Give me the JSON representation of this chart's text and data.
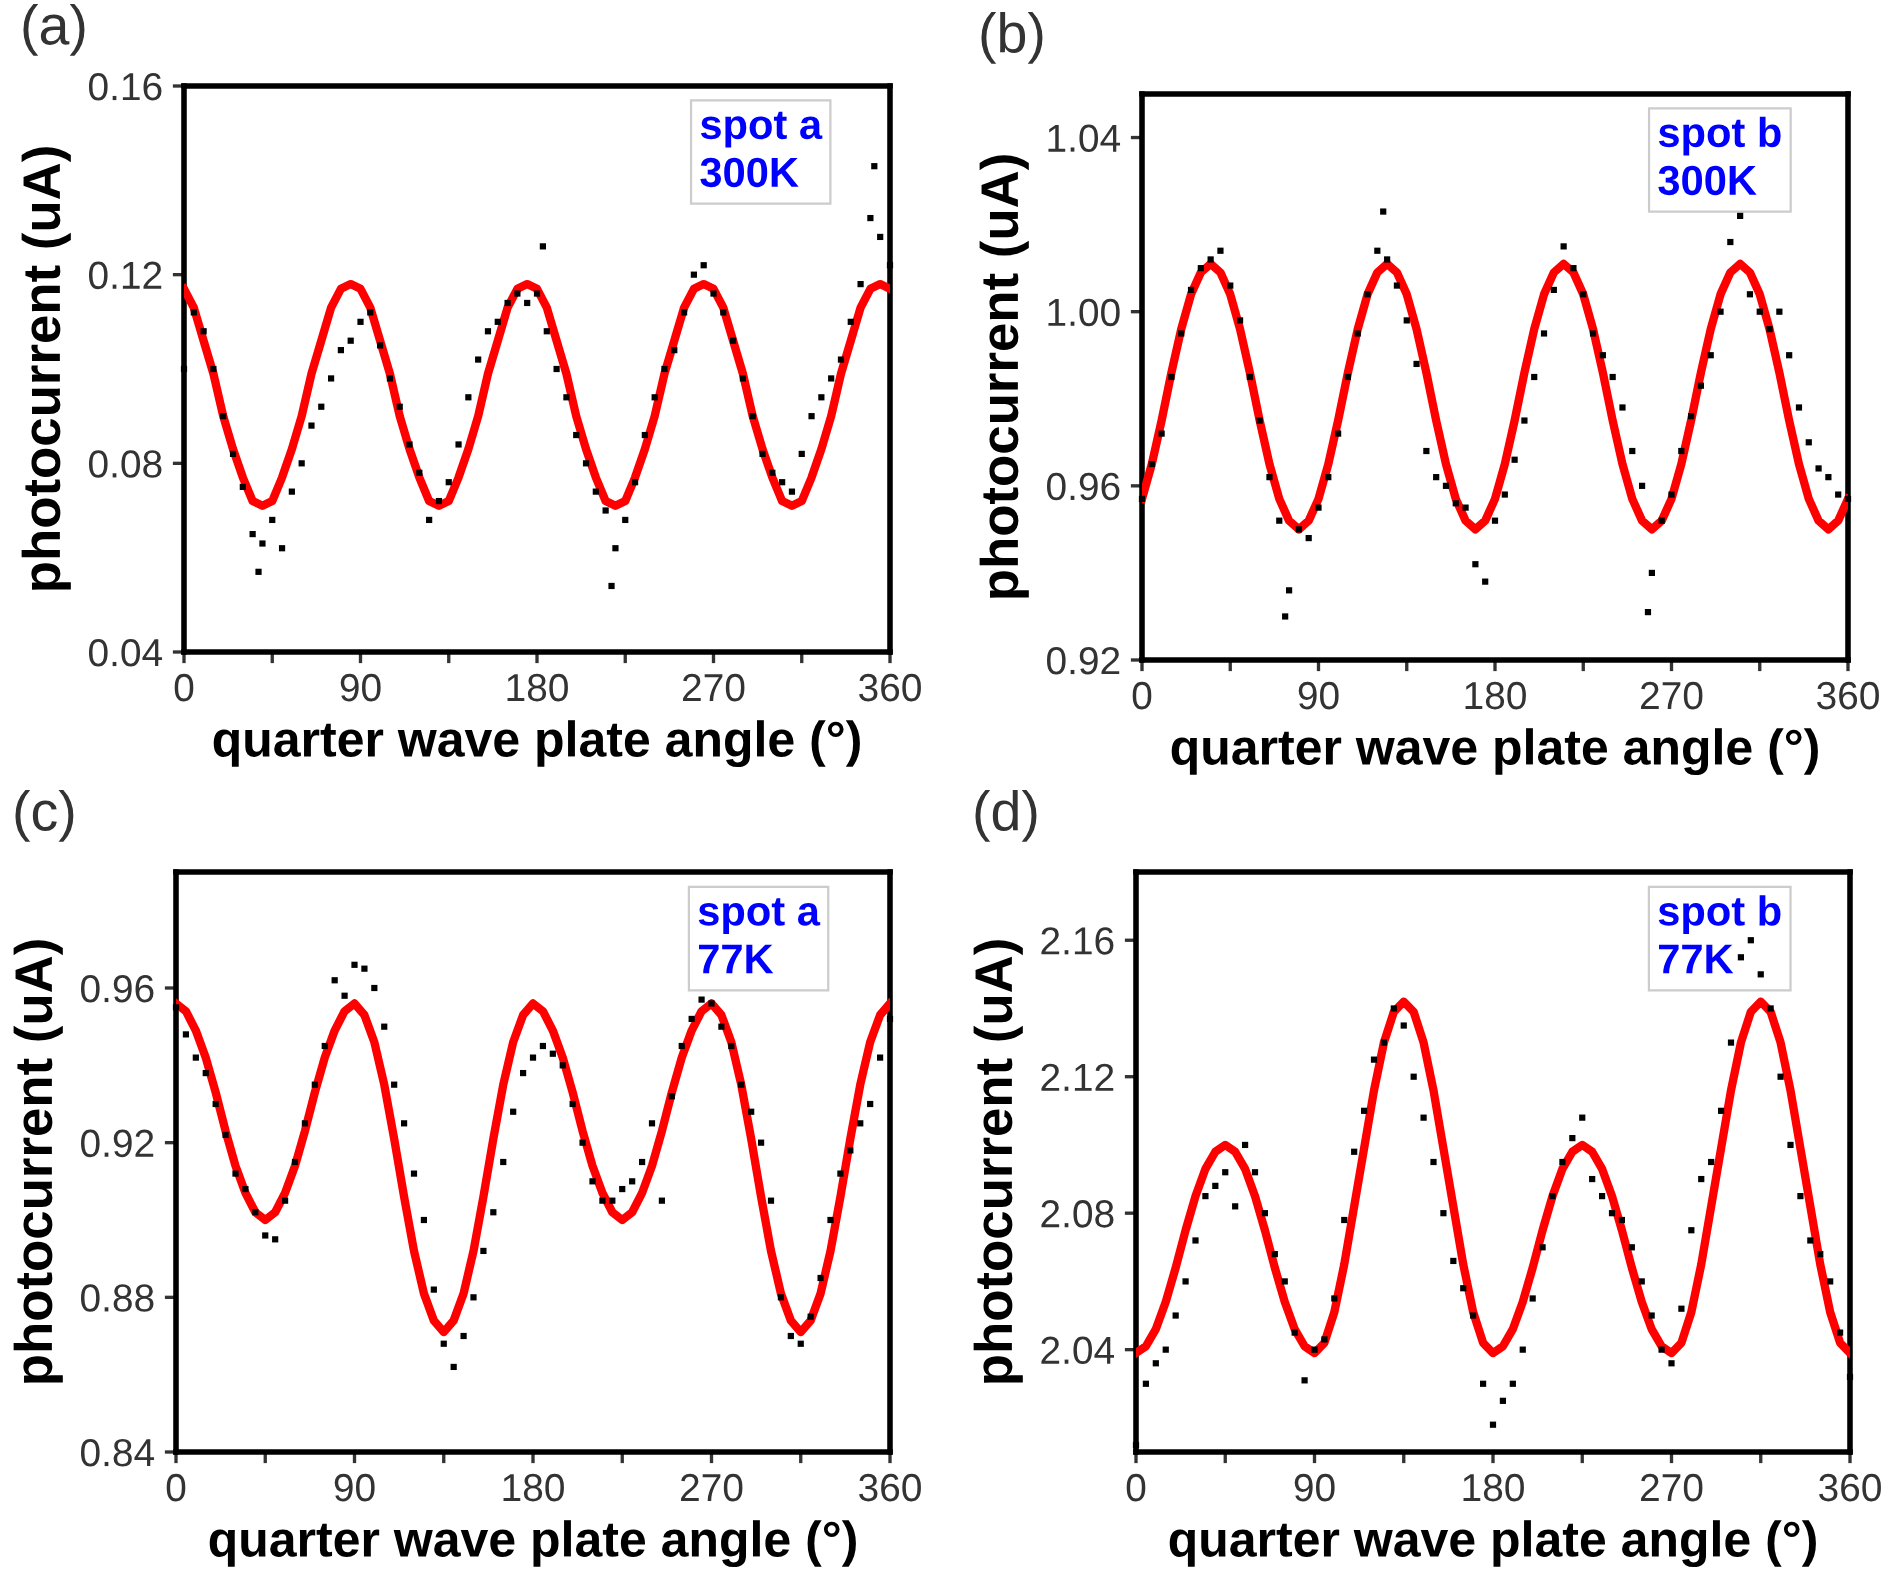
{
  "chart_data": [
    {
      "type": "scatter",
      "title": "(a)",
      "xlabel": "quarter wave plate angle (°)",
      "ylabel": "photocurrent (uA)",
      "annotations": [
        "spot a\n300K"
      ],
      "xlim": [
        0,
        360
      ],
      "ylim": [
        0.04,
        0.16
      ],
      "xticks": [
        0,
        {
          "value": 45,
          "label": null
        },
        90,
        {
          "value": 135,
          "label": null
        },
        180,
        {
          "value": 225,
          "label": null
        },
        270,
        {
          "value": 315,
          "label": null
        },
        360
      ],
      "yticks": [
        0.04,
        0.08,
        0.12,
        0.16
      ],
      "series": [
        {
          "color": "#000000",
          "x": [
            0,
            5,
            10,
            15,
            20,
            25,
            30,
            35,
            38,
            40,
            45,
            50,
            55,
            60,
            65,
            70,
            75,
            80,
            85,
            90,
            95,
            100,
            105,
            110,
            115,
            120,
            125,
            130,
            135,
            140,
            145,
            150,
            155,
            160,
            165,
            170,
            175,
            180,
            183,
            185,
            190,
            195,
            200,
            205,
            210,
            215,
            218,
            220,
            225,
            230,
            235,
            240,
            245,
            250,
            255,
            260,
            265,
            270,
            275,
            280,
            285,
            290,
            295,
            300,
            305,
            310,
            315,
            320,
            325,
            330,
            335,
            340,
            345,
            350,
            352,
            355,
            360
          ],
          "values": [
            0.1,
            0.112,
            0.108,
            0.1,
            0.09,
            0.082,
            0.075,
            0.065,
            0.057,
            0.063,
            0.068,
            0.062,
            0.074,
            0.08,
            0.088,
            0.092,
            0.098,
            0.104,
            0.106,
            0.11,
            0.112,
            0.105,
            0.098,
            0.092,
            0.084,
            0.078,
            0.068,
            0.072,
            0.076,
            0.084,
            0.094,
            0.102,
            0.108,
            0.11,
            0.114,
            0.116,
            0.114,
            0.116,
            0.126,
            0.108,
            0.1,
            0.094,
            0.086,
            0.08,
            0.074,
            0.07,
            0.054,
            0.062,
            0.068,
            0.076,
            0.086,
            0.094,
            0.1,
            0.104,
            0.112,
            0.12,
            0.122,
            0.116,
            0.112,
            0.106,
            0.098,
            0.09,
            0.082,
            0.078,
            0.076,
            0.074,
            0.082,
            0.09,
            0.094,
            0.098,
            0.102,
            0.11,
            0.118,
            0.132,
            0.143,
            0.128,
            0.122
          ]
        },
        {
          "type": "line",
          "color": "#ff0000",
          "x": [
            0,
            5,
            10,
            15,
            20,
            25,
            30,
            35,
            40,
            45,
            50,
            55,
            60,
            65,
            70,
            75,
            80,
            85,
            90,
            95,
            100,
            105,
            110,
            115,
            120,
            125,
            130,
            135,
            140,
            145,
            150,
            155,
            160,
            165,
            170,
            175,
            180,
            185,
            190,
            195,
            200,
            205,
            210,
            215,
            220,
            225,
            230,
            235,
            240,
            245,
            250,
            255,
            260,
            265,
            270,
            275,
            280,
            285,
            290,
            295,
            300,
            305,
            310,
            315,
            320,
            325,
            330,
            335,
            340,
            345,
            350,
            355,
            360
          ],
          "values": [
            0.117,
            0.113,
            0.106,
            0.099,
            0.09,
            0.083,
            0.077,
            0.072,
            0.071,
            0.072,
            0.077,
            0.083,
            0.09,
            0.099,
            0.106,
            0.113,
            0.117,
            0.118,
            0.117,
            0.113,
            0.106,
            0.099,
            0.09,
            0.083,
            0.077,
            0.072,
            0.071,
            0.072,
            0.077,
            0.083,
            0.09,
            0.099,
            0.106,
            0.113,
            0.117,
            0.118,
            0.117,
            0.113,
            0.106,
            0.099,
            0.09,
            0.083,
            0.077,
            0.072,
            0.071,
            0.072,
            0.077,
            0.083,
            0.09,
            0.099,
            0.106,
            0.113,
            0.117,
            0.118,
            0.117,
            0.113,
            0.106,
            0.099,
            0.09,
            0.083,
            0.077,
            0.072,
            0.071,
            0.072,
            0.077,
            0.083,
            0.09,
            0.099,
            0.106,
            0.113,
            0.117,
            0.118,
            0.117
          ]
        }
      ]
    },
    {
      "type": "scatter",
      "title": "(b)",
      "xlabel": "quarter wave plate angle (°)",
      "ylabel": "photocurrent (uA)",
      "annotations": [
        "spot b\n300K"
      ],
      "xlim": [
        0,
        360
      ],
      "ylim": [
        0.92,
        1.05
      ],
      "xticks": [
        0,
        {
          "value": 45,
          "label": null
        },
        90,
        {
          "value": 135,
          "label": null
        },
        180,
        {
          "value": 225,
          "label": null
        },
        270,
        {
          "value": 315,
          "label": null
        },
        360
      ],
      "yticks": [
        0.92,
        0.96,
        {
          "value": 1.0,
          "label": "1.00"
        },
        1.04
      ],
      "series": [
        {
          "color": "#000000",
          "x": [
            0,
            5,
            10,
            15,
            20,
            25,
            30,
            35,
            40,
            45,
            50,
            55,
            60,
            65,
            70,
            73,
            75,
            80,
            85,
            90,
            95,
            100,
            105,
            110,
            115,
            120,
            123,
            125,
            130,
            135,
            140,
            145,
            150,
            155,
            160,
            165,
            170,
            175,
            180,
            185,
            190,
            195,
            200,
            205,
            210,
            215,
            220,
            225,
            230,
            235,
            240,
            245,
            250,
            255,
            258,
            260,
            265,
            270,
            275,
            280,
            285,
            290,
            295,
            300,
            305,
            310,
            315,
            320,
            325,
            330,
            335,
            340,
            345,
            350,
            355,
            360
          ],
          "values": [
            0.957,
            0.965,
            0.972,
            0.985,
            0.995,
            1.005,
            1.01,
            1.012,
            1.014,
            1.006,
            0.998,
            0.985,
            0.975,
            0.962,
            0.952,
            0.93,
            0.936,
            0.95,
            0.948,
            0.955,
            0.962,
            0.972,
            0.985,
            0.995,
            1.004,
            1.014,
            1.023,
            1.012,
            1.006,
            0.998,
            0.988,
            0.968,
            0.962,
            0.96,
            0.956,
            0.955,
            0.942,
            0.938,
            0.952,
            0.958,
            0.966,
            0.975,
            0.985,
            0.995,
            1.005,
            1.015,
            1.01,
            1.004,
            0.995,
            0.99,
            0.985,
            0.978,
            0.968,
            0.96,
            0.931,
            0.94,
            0.952,
            0.958,
            0.968,
            0.976,
            0.983,
            0.99,
            1.0,
            1.016,
            1.022,
            1.004,
            1.0,
            0.996,
            1.0,
            0.99,
            0.978,
            0.97,
            0.964,
            0.962,
            0.958,
            0.957
          ]
        },
        {
          "type": "line",
          "color": "#ff0000",
          "x": [
            0,
            5,
            10,
            15,
            20,
            25,
            30,
            35,
            40,
            45,
            50,
            55,
            60,
            65,
            70,
            75,
            80,
            85,
            90,
            95,
            100,
            105,
            110,
            115,
            120,
            125,
            130,
            135,
            140,
            145,
            150,
            155,
            160,
            165,
            170,
            175,
            180,
            185,
            190,
            195,
            200,
            205,
            210,
            215,
            220,
            225,
            230,
            235,
            240,
            245,
            250,
            255,
            260,
            265,
            270,
            275,
            280,
            285,
            290,
            295,
            300,
            305,
            310,
            315,
            320,
            325,
            330,
            335,
            340,
            345,
            350,
            355,
            360
          ],
          "values": [
            0.957,
            0.965,
            0.975,
            0.986,
            0.996,
            1.004,
            1.009,
            1.011,
            1.009,
            1.004,
            0.996,
            0.986,
            0.975,
            0.965,
            0.957,
            0.952,
            0.95,
            0.952,
            0.957,
            0.965,
            0.975,
            0.986,
            0.996,
            1.004,
            1.009,
            1.011,
            1.009,
            1.004,
            0.996,
            0.986,
            0.975,
            0.965,
            0.957,
            0.952,
            0.95,
            0.952,
            0.957,
            0.965,
            0.975,
            0.986,
            0.996,
            1.004,
            1.009,
            1.011,
            1.009,
            1.004,
            0.996,
            0.986,
            0.975,
            0.965,
            0.957,
            0.952,
            0.95,
            0.952,
            0.957,
            0.965,
            0.975,
            0.986,
            0.996,
            1.004,
            1.009,
            1.011,
            1.009,
            1.004,
            0.996,
            0.986,
            0.975,
            0.965,
            0.957,
            0.952,
            0.95,
            0.952,
            0.957
          ]
        }
      ]
    },
    {
      "type": "scatter",
      "title": "(c)",
      "xlabel": "quarter wave plate angle (°)",
      "ylabel": "photocurrent (uA)",
      "annotations": [
        "spot a\n77K"
      ],
      "xlim": [
        0,
        360
      ],
      "ylim": [
        0.84,
        0.99
      ],
      "xticks": [
        0,
        {
          "value": 45,
          "label": null
        },
        90,
        {
          "value": 135,
          "label": null
        },
        180,
        {
          "value": 225,
          "label": null
        },
        270,
        {
          "value": 315,
          "label": null
        },
        360
      ],
      "yticks": [
        0.84,
        0.88,
        0.92,
        0.96
      ],
      "series": [
        {
          "color": "#000000",
          "x": [
            0,
            5,
            10,
            15,
            20,
            25,
            30,
            35,
            40,
            45,
            50,
            55,
            60,
            65,
            70,
            75,
            80,
            85,
            90,
            95,
            100,
            105,
            110,
            115,
            120,
            125,
            130,
            135,
            140,
            145,
            150,
            155,
            160,
            165,
            170,
            175,
            180,
            185,
            190,
            195,
            200,
            205,
            210,
            215,
            220,
            225,
            230,
            235,
            240,
            245,
            250,
            255,
            260,
            265,
            270,
            275,
            280,
            285,
            290,
            295,
            300,
            305,
            310,
            315,
            320,
            325,
            330,
            335,
            340,
            345,
            350,
            355,
            360
          ],
          "values": [
            0.955,
            0.948,
            0.942,
            0.938,
            0.93,
            0.922,
            0.912,
            0.908,
            0.902,
            0.896,
            0.895,
            0.905,
            0.915,
            0.925,
            0.935,
            0.945,
            0.962,
            0.958,
            0.966,
            0.965,
            0.96,
            0.95,
            0.935,
            0.925,
            0.912,
            0.9,
            0.882,
            0.868,
            0.862,
            0.87,
            0.88,
            0.892,
            0.902,
            0.915,
            0.928,
            0.938,
            0.942,
            0.945,
            0.943,
            0.94,
            0.93,
            0.92,
            0.91,
            0.905,
            0.905,
            0.908,
            0.91,
            0.915,
            0.925,
            0.905,
            0.932,
            0.945,
            0.952,
            0.957,
            0.956,
            0.95,
            0.945,
            0.935,
            0.928,
            0.92,
            0.905,
            0.88,
            0.87,
            0.868,
            0.875,
            0.885,
            0.9,
            0.912,
            0.918,
            0.925,
            0.93,
            0.942,
            0.952
          ]
        },
        {
          "type": "line",
          "color": "#ff0000",
          "x": [
            0,
            5,
            10,
            15,
            20,
            25,
            30,
            35,
            40,
            45,
            50,
            55,
            60,
            65,
            70,
            75,
            80,
            85,
            90,
            95,
            100,
            105,
            110,
            115,
            120,
            125,
            130,
            135,
            140,
            145,
            150,
            155,
            160,
            165,
            170,
            175,
            180,
            185,
            190,
            195,
            200,
            205,
            210,
            215,
            220,
            225,
            230,
            235,
            240,
            245,
            250,
            255,
            260,
            265,
            270,
            275,
            280,
            285,
            290,
            295,
            300,
            305,
            310,
            315,
            320,
            325,
            330,
            335,
            340,
            345,
            350,
            355,
            360
          ],
          "values": [
            0.956,
            0.954,
            0.949,
            0.942,
            0.933,
            0.923,
            0.914,
            0.907,
            0.902,
            0.9,
            0.902,
            0.907,
            0.914,
            0.923,
            0.933,
            0.942,
            0.949,
            0.954,
            0.956,
            0.953,
            0.946,
            0.935,
            0.921,
            0.906,
            0.892,
            0.881,
            0.874,
            0.871,
            0.874,
            0.881,
            0.892,
            0.906,
            0.921,
            0.935,
            0.946,
            0.953,
            0.956,
            0.954,
            0.949,
            0.942,
            0.933,
            0.923,
            0.914,
            0.907,
            0.902,
            0.9,
            0.902,
            0.907,
            0.914,
            0.923,
            0.933,
            0.942,
            0.949,
            0.954,
            0.956,
            0.953,
            0.946,
            0.935,
            0.921,
            0.906,
            0.892,
            0.881,
            0.874,
            0.871,
            0.874,
            0.881,
            0.892,
            0.906,
            0.921,
            0.935,
            0.946,
            0.953,
            0.956
          ]
        }
      ]
    },
    {
      "type": "scatter",
      "title": "(d)",
      "xlabel": "quarter wave plate angle (°)",
      "ylabel": "photocurrent (uA)",
      "annotations": [
        "spot b\n77K"
      ],
      "xlim": [
        0,
        360
      ],
      "ylim": [
        2.01,
        2.18
      ],
      "xticks": [
        0,
        {
          "value": 45,
          "label": null
        },
        90,
        {
          "value": 135,
          "label": null
        },
        180,
        {
          "value": 225,
          "label": null
        },
        270,
        {
          "value": 315,
          "label": null
        },
        360
      ],
      "yticks": [
        2.04,
        2.08,
        2.12,
        2.16
      ],
      "series": [
        {
          "color": "#000000",
          "x": [
            0,
            5,
            10,
            15,
            20,
            25,
            30,
            35,
            40,
            45,
            50,
            55,
            60,
            65,
            70,
            75,
            80,
            85,
            90,
            95,
            100,
            105,
            110,
            115,
            120,
            125,
            130,
            135,
            140,
            145,
            150,
            155,
            160,
            165,
            170,
            175,
            180,
            185,
            190,
            195,
            200,
            205,
            210,
            215,
            220,
            225,
            230,
            235,
            240,
            245,
            250,
            255,
            260,
            265,
            270,
            275,
            280,
            285,
            290,
            295,
            300,
            305,
            310,
            315,
            320,
            325,
            330,
            335,
            340,
            345,
            350,
            355,
            360
          ],
          "values": [
            2.012,
            2.03,
            2.036,
            2.04,
            2.05,
            2.06,
            2.072,
            2.085,
            2.088,
            2.092,
            2.082,
            2.1,
            2.092,
            2.08,
            2.068,
            2.06,
            2.045,
            2.031,
            2.04,
            2.043,
            2.055,
            2.078,
            2.098,
            2.11,
            2.125,
            2.13,
            2.14,
            2.135,
            2.12,
            2.108,
            2.095,
            2.08,
            2.066,
            2.058,
            2.05,
            2.03,
            2.018,
            2.025,
            2.03,
            2.04,
            2.055,
            2.07,
            2.085,
            2.095,
            2.102,
            2.108,
            2.09,
            2.085,
            2.08,
            2.078,
            2.07,
            2.06,
            2.05,
            2.04,
            2.036,
            2.052,
            2.075,
            2.09,
            2.095,
            2.11,
            2.13,
            2.155,
            2.16,
            2.15,
            2.14,
            2.12,
            2.1,
            2.085,
            2.072,
            2.068,
            2.06,
            2.045,
            2.032
          ]
        },
        {
          "type": "line",
          "color": "#ff0000",
          "x": [
            0,
            5,
            10,
            15,
            20,
            25,
            30,
            35,
            40,
            45,
            50,
            55,
            60,
            65,
            70,
            75,
            80,
            85,
            90,
            95,
            100,
            105,
            110,
            115,
            120,
            125,
            130,
            135,
            140,
            145,
            150,
            155,
            160,
            165,
            170,
            175,
            180,
            185,
            190,
            195,
            200,
            205,
            210,
            215,
            220,
            225,
            230,
            235,
            240,
            245,
            250,
            255,
            260,
            265,
            270,
            275,
            280,
            285,
            290,
            295,
            300,
            305,
            310,
            315,
            320,
            325,
            330,
            335,
            340,
            345,
            350,
            355,
            360
          ],
          "values": [
            2.039,
            2.041,
            2.046,
            2.054,
            2.064,
            2.075,
            2.085,
            2.093,
            2.098,
            2.1,
            2.098,
            2.093,
            2.085,
            2.075,
            2.064,
            2.054,
            2.046,
            2.041,
            2.039,
            2.042,
            2.051,
            2.065,
            2.082,
            2.099,
            2.116,
            2.13,
            2.139,
            2.142,
            2.139,
            2.13,
            2.116,
            2.099,
            2.082,
            2.065,
            2.051,
            2.042,
            2.039,
            2.041,
            2.046,
            2.054,
            2.064,
            2.075,
            2.085,
            2.093,
            2.098,
            2.1,
            2.098,
            2.093,
            2.085,
            2.075,
            2.064,
            2.054,
            2.046,
            2.041,
            2.039,
            2.042,
            2.051,
            2.065,
            2.082,
            2.099,
            2.116,
            2.13,
            2.139,
            2.142,
            2.139,
            2.13,
            2.116,
            2.099,
            2.082,
            2.065,
            2.051,
            2.042,
            2.039
          ]
        }
      ]
    }
  ]
}
